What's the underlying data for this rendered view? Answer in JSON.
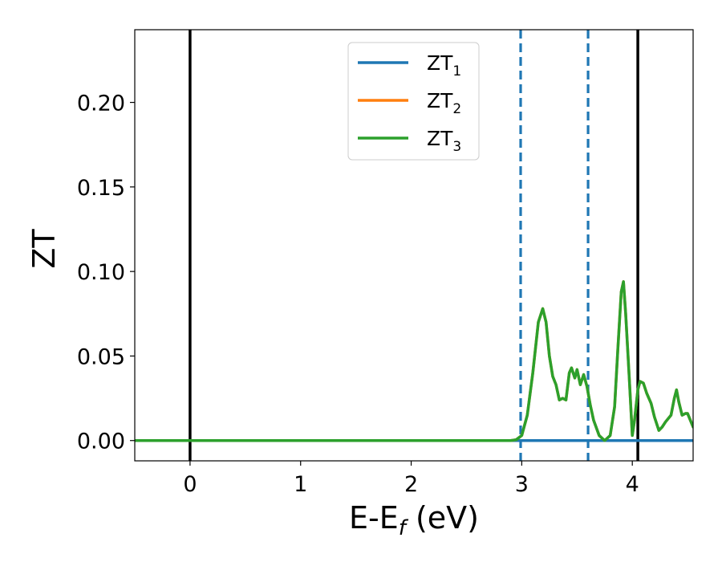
{
  "chart_data": {
    "type": "line",
    "xlabel_main": "E-E",
    "xlabel_sub": "f",
    "xlabel_unit": " (eV)",
    "ylabel": "ZT",
    "xlim": [
      -0.5,
      4.55
    ],
    "ylim": [
      -0.012,
      0.243
    ],
    "xticks": [
      0,
      1,
      2,
      3,
      4
    ],
    "xtick_labels": [
      "0",
      "1",
      "2",
      "3",
      "4"
    ],
    "yticks": [
      0.0,
      0.05,
      0.1,
      0.15,
      0.2
    ],
    "ytick_labels": [
      "0.00",
      "0.05",
      "0.10",
      "0.15",
      "0.20"
    ],
    "grid": false,
    "legend_position": "top-center",
    "vlines": [
      {
        "x": 0.0,
        "style": "solid",
        "color": "#000000"
      },
      {
        "x": 4.05,
        "style": "solid",
        "color": "#000000"
      },
      {
        "x": 2.99,
        "style": "dashed",
        "color": "#1f77b4"
      },
      {
        "x": 3.6,
        "style": "dashed",
        "color": "#1f77b4"
      }
    ],
    "series": [
      {
        "name": "ZT",
        "name_sub": "1",
        "color": "#1f77b4",
        "x": [
          -0.5,
          3.0,
          4.55
        ],
        "y": [
          0.0,
          0.0,
          0.0
        ]
      },
      {
        "name": "ZT",
        "name_sub": "2",
        "color": "#ff7f0e",
        "x": [
          -0.5,
          2.9,
          2.95,
          3.0,
          3.05,
          3.1,
          3.15,
          3.19,
          3.22,
          3.25,
          3.28,
          3.31,
          3.34,
          3.37,
          3.4,
          3.43,
          3.45,
          3.48,
          3.5,
          3.53,
          3.56,
          3.59,
          3.62,
          3.65,
          3.7,
          3.75,
          3.8,
          3.84,
          3.87,
          3.9,
          3.92,
          3.94,
          3.97,
          4.0,
          4.02,
          4.05,
          4.07,
          4.1,
          4.13,
          4.17,
          4.2,
          4.24,
          4.27,
          4.3,
          4.35,
          4.38,
          4.4,
          4.42,
          4.45,
          4.48,
          4.5,
          4.55
        ],
        "y": [
          0.0,
          0.0,
          0.0005,
          0.003,
          0.015,
          0.04,
          0.07,
          0.078,
          0.07,
          0.05,
          0.038,
          0.033,
          0.024,
          0.025,
          0.024,
          0.04,
          0.043,
          0.037,
          0.042,
          0.033,
          0.039,
          0.032,
          0.021,
          0.012,
          0.003,
          0.0,
          0.003,
          0.02,
          0.055,
          0.088,
          0.094,
          0.075,
          0.04,
          0.003,
          0.012,
          0.03,
          0.035,
          0.034,
          0.028,
          0.022,
          0.014,
          0.006,
          0.008,
          0.011,
          0.015,
          0.025,
          0.03,
          0.023,
          0.015,
          0.016,
          0.016,
          0.008
        ]
      },
      {
        "name": "ZT",
        "name_sub": "3",
        "color": "#2ca02c",
        "x": [
          -0.5,
          2.9,
          2.95,
          3.0,
          3.05,
          3.1,
          3.15,
          3.19,
          3.22,
          3.25,
          3.28,
          3.31,
          3.34,
          3.37,
          3.4,
          3.43,
          3.45,
          3.48,
          3.5,
          3.53,
          3.56,
          3.59,
          3.62,
          3.65,
          3.7,
          3.75,
          3.8,
          3.84,
          3.87,
          3.9,
          3.92,
          3.94,
          3.97,
          4.0,
          4.02,
          4.05,
          4.07,
          4.1,
          4.13,
          4.17,
          4.2,
          4.24,
          4.27,
          4.3,
          4.35,
          4.38,
          4.4,
          4.42,
          4.45,
          4.48,
          4.5,
          4.55
        ],
        "y": [
          0.0,
          0.0,
          0.0005,
          0.003,
          0.015,
          0.04,
          0.07,
          0.078,
          0.07,
          0.05,
          0.038,
          0.033,
          0.024,
          0.025,
          0.024,
          0.04,
          0.043,
          0.037,
          0.042,
          0.033,
          0.039,
          0.032,
          0.021,
          0.012,
          0.003,
          0.0,
          0.003,
          0.02,
          0.055,
          0.088,
          0.094,
          0.075,
          0.04,
          0.003,
          0.012,
          0.03,
          0.035,
          0.034,
          0.028,
          0.022,
          0.014,
          0.006,
          0.008,
          0.011,
          0.015,
          0.025,
          0.03,
          0.023,
          0.015,
          0.016,
          0.016,
          0.008
        ]
      }
    ]
  }
}
